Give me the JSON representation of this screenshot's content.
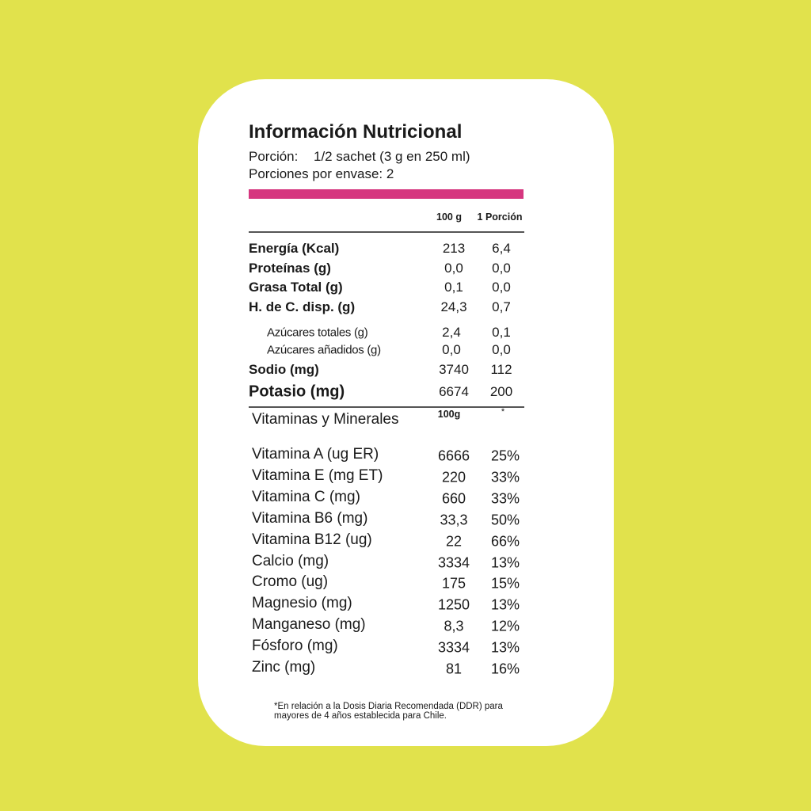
{
  "title": "Información Nutricional",
  "serving_label": "Porción:",
  "serving_size": "1/2 sachet (3 g en 250 ml)",
  "servings_per_container": "Porciones por envase: 2",
  "nutrients": {
    "columns": [
      "100 g",
      "1 Porción"
    ],
    "rows": [
      {
        "name": "Energía (Kcal)",
        "per_100g": "213",
        "per_portion": "6,4"
      },
      {
        "name": "Proteínas (g)",
        "per_100g": "0,0",
        "per_portion": "0,0"
      },
      {
        "name": "Grasa Total (g)",
        "per_100g": "0,1",
        "per_portion": "0,0"
      },
      {
        "name": "H. de C. disp. (g)",
        "per_100g": "24,3",
        "per_portion": "0,7",
        "subrows": [
          {
            "name": "Azúcares totales (g)",
            "per_100g": "2,4",
            "per_portion": "0,1"
          },
          {
            "name": "Azúcares añadidos (g)",
            "per_100g": "0,0",
            "per_portion": "0,0"
          }
        ]
      },
      {
        "name": "Sodio (mg)",
        "per_100g": "3740",
        "per_portion": "112"
      },
      {
        "name": "Potasio (mg)",
        "per_100g": "6674",
        "per_portion": "200"
      }
    ]
  },
  "vitamins": {
    "title": "Vitaminas y Minerales",
    "columns": [
      "100g",
      "*"
    ],
    "rows": [
      {
        "name": "Vitamina A (ug ER)",
        "per_100g": "6666",
        "ddr": "25%"
      },
      {
        "name": "Vitamina E (mg ET)",
        "per_100g": "220",
        "ddr": "33%"
      },
      {
        "name": "Vitamina C (mg)",
        "per_100g": "660",
        "ddr": "33%"
      },
      {
        "name": "Vitamina B6 (mg)",
        "per_100g": "33,3",
        "ddr": "50%"
      },
      {
        "name": "Vitamina B12 (ug)",
        "per_100g": "22",
        "ddr": "66%"
      },
      {
        "name": "Calcio (mg)",
        "per_100g": "3334",
        "ddr": "13%"
      },
      {
        "name": "Cromo (ug)",
        "per_100g": "175",
        "ddr": "15%"
      },
      {
        "name": "Magnesio (mg)",
        "per_100g": "1250",
        "ddr": "13%"
      },
      {
        "name": "Manganeso (mg)",
        "per_100g": "8,3",
        "ddr": "12%"
      },
      {
        "name": "Fósforo (mg)",
        "per_100g": "3334",
        "ddr": "13%"
      },
      {
        "name": "Zinc (mg)",
        "per_100g": "81",
        "ddr": "16%"
      }
    ]
  },
  "footnote": "*En relación a la Dosis Diaria Recomendada (DDR) para mayores de 4 años establecida para Chile."
}
